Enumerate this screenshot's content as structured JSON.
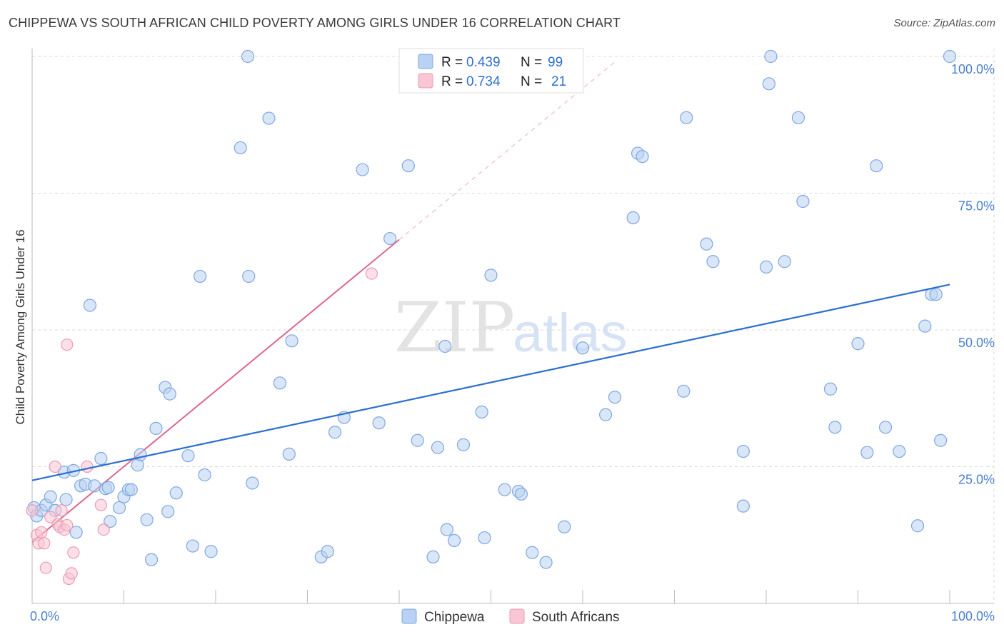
{
  "header": {
    "title": "CHIPPEWA VS SOUTH AFRICAN CHILD POVERTY AMONG GIRLS UNDER 16 CORRELATION CHART",
    "source": "Source: ZipAtlas.com"
  },
  "watermark": {
    "zip": "ZIP",
    "atlas": "atlas"
  },
  "colors": {
    "chippewa_fill": "#b9d1f3",
    "chippewa_stroke": "#7ea7e0",
    "chippewa_line": "#2a6fcf",
    "sa_fill": "#f8c6d4",
    "sa_stroke": "#ee9ab3",
    "sa_line": "#e06690",
    "tick_text": "#4a7fd0"
  },
  "legend": {
    "rows": [
      {
        "r_label": "R =",
        "r_value": "0.439",
        "n_label": "N =",
        "n_value": "99"
      },
      {
        "r_label": "R =",
        "r_value": "0.734",
        "n_label": "N =",
        "n_value": "21"
      }
    ]
  },
  "bottom_legend": {
    "series1": "Chippewa",
    "series2": "South Africans"
  },
  "chart_data": {
    "type": "scatter",
    "title": "CHIPPEWA VS SOUTH AFRICAN CHILD POVERTY AMONG GIRLS UNDER 16 CORRELATION CHART",
    "xlabel": "",
    "ylabel": "Child Poverty Among Girls Under 16",
    "xlim": [
      0,
      100
    ],
    "ylim": [
      0,
      100
    ],
    "x_tick_labels": {
      "left": "0.0%",
      "right": "100.0%"
    },
    "y_ticks": [
      {
        "value": 100,
        "label": "100.0%"
      },
      {
        "value": 75,
        "label": "75.0%"
      },
      {
        "value": 50,
        "label": "50.0%"
      },
      {
        "value": 25,
        "label": "25.0%"
      }
    ],
    "grid": true,
    "series": [
      {
        "name": "Chippewa",
        "R": 0.439,
        "N": 99,
        "trend": {
          "x": [
            0,
            100
          ],
          "y": [
            22.5,
            58.3
          ]
        },
        "points": [
          [
            0.2,
            17.5
          ],
          [
            0.5,
            16.0
          ],
          [
            1.0,
            17.0
          ],
          [
            1.5,
            18.0
          ],
          [
            2.0,
            19.5
          ],
          [
            2.5,
            17.0
          ],
          [
            3.5,
            24.0
          ],
          [
            3.7,
            19.0
          ],
          [
            4.5,
            24.3
          ],
          [
            4.8,
            13.0
          ],
          [
            5.3,
            21.5
          ],
          [
            5.8,
            21.8
          ],
          [
            6.3,
            54.5
          ],
          [
            6.8,
            21.5
          ],
          [
            7.5,
            26.5
          ],
          [
            8.0,
            21.0
          ],
          [
            8.3,
            21.2
          ],
          [
            8.5,
            15.0
          ],
          [
            9.5,
            17.5
          ],
          [
            10.0,
            19.5
          ],
          [
            10.5,
            20.8
          ],
          [
            10.8,
            20.8
          ],
          [
            11.5,
            25.3
          ],
          [
            11.8,
            27.2
          ],
          [
            12.5,
            15.3
          ],
          [
            13.0,
            8.0
          ],
          [
            13.5,
            32.0
          ],
          [
            14.5,
            39.5
          ],
          [
            14.8,
            16.8
          ],
          [
            15.0,
            38.3
          ],
          [
            15.7,
            20.2
          ],
          [
            17.0,
            27.0
          ],
          [
            17.5,
            10.5
          ],
          [
            18.3,
            59.8
          ],
          [
            18.8,
            23.5
          ],
          [
            19.5,
            9.5
          ],
          [
            22.7,
            83.3
          ],
          [
            23.5,
            100.0
          ],
          [
            23.6,
            59.8
          ],
          [
            24.0,
            22.0
          ],
          [
            25.8,
            88.7
          ],
          [
            27.0,
            40.3
          ],
          [
            28.0,
            27.3
          ],
          [
            28.3,
            48.0
          ],
          [
            31.5,
            8.5
          ],
          [
            32.2,
            9.5
          ],
          [
            33.0,
            31.3
          ],
          [
            34.0,
            34.0
          ],
          [
            36.0,
            79.3
          ],
          [
            37.8,
            33.0
          ],
          [
            39.0,
            66.7
          ],
          [
            41.0,
            80.0
          ],
          [
            42.0,
            29.8
          ],
          [
            43.7,
            8.5
          ],
          [
            44.2,
            28.5
          ],
          [
            45.0,
            47.0
          ],
          [
            45.2,
            13.5
          ],
          [
            46.0,
            11.5
          ],
          [
            47.0,
            29.0
          ],
          [
            49.0,
            35.0
          ],
          [
            49.3,
            12.0
          ],
          [
            50.0,
            60.0
          ],
          [
            51.5,
            20.8
          ],
          [
            53.0,
            20.5
          ],
          [
            53.3,
            20.0
          ],
          [
            54.5,
            9.3
          ],
          [
            56.0,
            7.5
          ],
          [
            58.0,
            14.0
          ],
          [
            60.0,
            46.7
          ],
          [
            62.5,
            34.5
          ],
          [
            63.5,
            37.7
          ],
          [
            65.5,
            70.5
          ],
          [
            66.0,
            82.3
          ],
          [
            66.5,
            81.7
          ],
          [
            71.0,
            38.8
          ],
          [
            71.3,
            88.8
          ],
          [
            73.5,
            65.7
          ],
          [
            74.2,
            62.5
          ],
          [
            77.5,
            27.8
          ],
          [
            77.5,
            17.8
          ],
          [
            80.0,
            61.5
          ],
          [
            80.3,
            95.0
          ],
          [
            80.5,
            100.0
          ],
          [
            82.0,
            62.5
          ],
          [
            83.5,
            88.8
          ],
          [
            84.0,
            73.5
          ],
          [
            87.0,
            39.2
          ],
          [
            87.5,
            32.2
          ],
          [
            90.0,
            47.5
          ],
          [
            91.0,
            27.6
          ],
          [
            92.0,
            80.0
          ],
          [
            93.0,
            32.2
          ],
          [
            94.5,
            27.8
          ],
          [
            96.5,
            14.2
          ],
          [
            97.3,
            50.7
          ],
          [
            98.0,
            56.5
          ],
          [
            98.5,
            56.5
          ],
          [
            100.0,
            100.0
          ],
          [
            99.0,
            29.8
          ]
        ]
      },
      {
        "name": "South Africans",
        "R": 0.734,
        "N": 21,
        "trend": {
          "x": [
            0,
            40
          ],
          "y": [
            11.2,
            66.5
          ]
        },
        "trend_dashed_extension": {
          "x": [
            40,
            63.5
          ],
          "y": [
            66.5,
            99.0
          ]
        },
        "points": [
          [
            0.0,
            17.0
          ],
          [
            0.5,
            12.5
          ],
          [
            0.7,
            11.0
          ],
          [
            1.0,
            13.0
          ],
          [
            1.3,
            11.0
          ],
          [
            1.5,
            6.5
          ],
          [
            2.0,
            15.8
          ],
          [
            2.5,
            25.0
          ],
          [
            2.8,
            14.5
          ],
          [
            3.0,
            14.0
          ],
          [
            3.2,
            17.0
          ],
          [
            3.5,
            13.5
          ],
          [
            3.8,
            14.3
          ],
          [
            4.0,
            4.5
          ],
          [
            4.3,
            5.5
          ],
          [
            4.5,
            9.3
          ],
          [
            6.0,
            25.0
          ],
          [
            7.5,
            18.0
          ],
          [
            7.8,
            13.5
          ],
          [
            37.0,
            60.3
          ],
          [
            3.8,
            47.3
          ]
        ]
      }
    ]
  }
}
